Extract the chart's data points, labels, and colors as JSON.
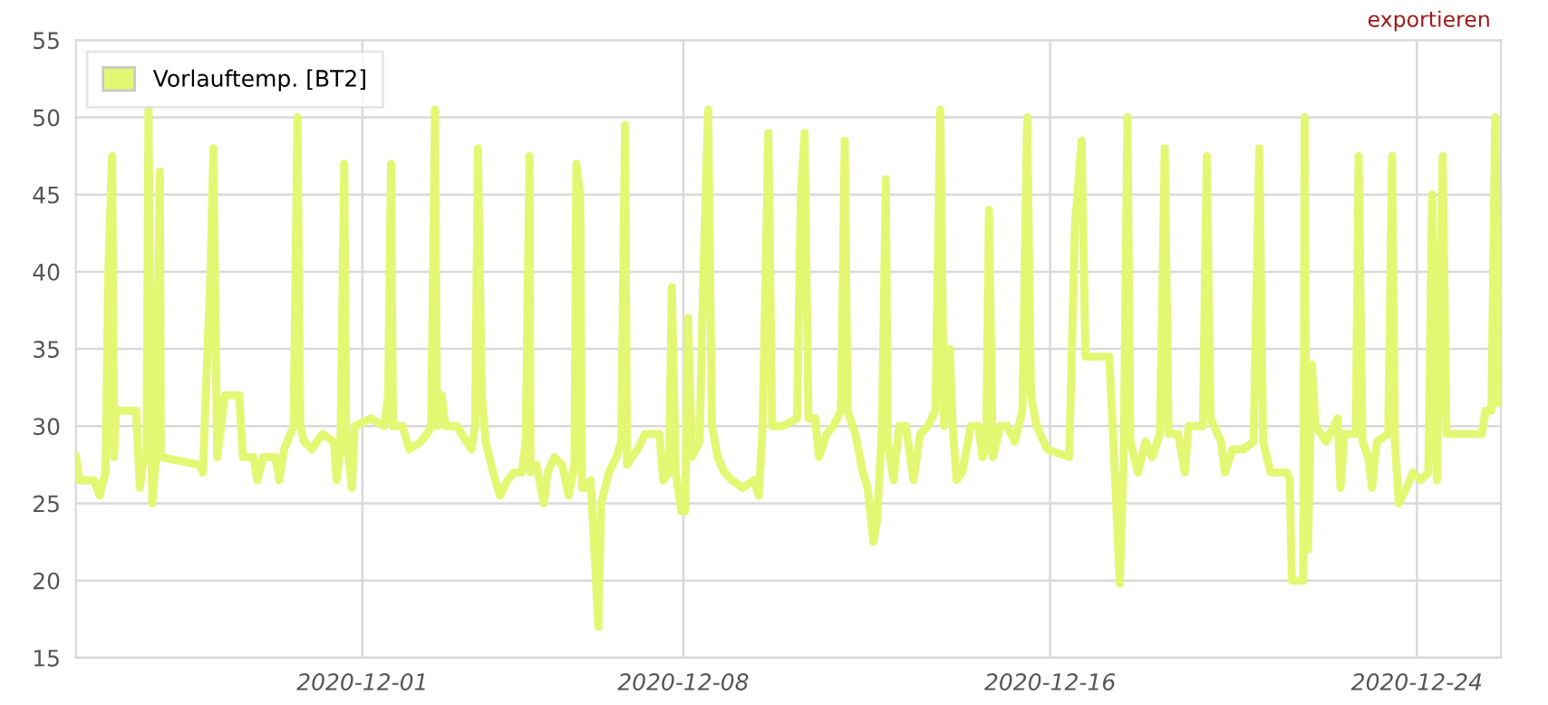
{
  "chart_data": {
    "type": "line",
    "legend": "top left",
    "grid": true,
    "xlim": [
      "2020-11-24T18:00",
      "2020-12-25T20:00"
    ],
    "xticks": [
      "2020-12-01",
      "2020-12-08",
      "2020-12-16",
      "2020-12-24"
    ],
    "ylim": [
      15,
      55
    ],
    "yticks": [
      15,
      20,
      25,
      30,
      35,
      40,
      45,
      50,
      55
    ],
    "annotations": [
      "exportieren"
    ],
    "series": [
      {
        "name": "Vorlauftemp. [BT2]",
        "color": "#e4f773",
        "x": [
          "2020-11-24T18:00",
          "2020-11-24T20:00",
          "2020-11-25T03:30",
          "2020-11-25T06:30",
          "2020-11-25T09:30",
          "2020-11-25T11:00",
          "2020-11-25T13:00",
          "2020-11-25T14:00",
          "2020-11-25T15:00",
          "2020-11-26T01:30",
          "2020-11-26T03:30",
          "2020-11-26T05:00",
          "2020-11-26T07:00",
          "2020-11-26T08:00",
          "2020-11-26T10:00",
          "2020-11-26T12:00",
          "2020-11-26T14:00",
          "2020-11-26T14:30",
          "2020-11-27T10:30",
          "2020-11-27T12:30",
          "2020-11-27T16:30",
          "2020-11-27T18:00",
          "2020-11-27T20:00",
          "2020-11-28T00:00",
          "2020-11-28T07:30",
          "2020-11-28T09:30",
          "2020-11-28T15:00",
          "2020-11-28T17:00",
          "2020-11-28T20:00",
          "2020-11-29T02:30",
          "2020-11-29T04:30",
          "2020-11-29T07:00",
          "2020-11-29T12:00",
          "2020-11-29T14:00",
          "2020-11-29T15:30",
          "2020-11-29T17:30",
          "2020-11-29T21:30",
          "2020-11-30T03:00",
          "2020-11-30T09:00",
          "2020-11-30T10:30",
          "2020-11-30T12:30",
          "2020-11-30T14:30",
          "2020-11-30T15:30",
          "2020-11-30T18:30",
          "2020-11-30T20:00",
          "2020-12-01T04:30",
          "2020-12-01T11:30",
          "2020-12-01T13:30",
          "2020-12-01T15:00",
          "2020-12-01T16:00",
          "2020-12-01T21:00",
          "2020-12-02T00:30",
          "2020-12-02T06:30",
          "2020-12-02T10:00",
          "2020-12-02T12:00",
          "2020-12-02T14:00",
          "2020-12-02T15:00",
          "2020-12-02T17:30",
          "2020-12-02T19:30",
          "2020-12-03T01:30",
          "2020-12-03T09:00",
          "2020-12-03T11:00",
          "2020-12-03T12:30",
          "2020-12-03T14:30",
          "2020-12-03T16:30",
          "2020-12-03T20:30",
          "2020-12-04T00:00",
          "2020-12-04T04:00",
          "2020-12-04T07:30",
          "2020-12-04T11:30",
          "2020-12-04T13:30",
          "2020-12-04T15:30",
          "2020-12-04T16:00",
          "2020-12-04T19:00",
          "2020-12-04T23:00",
          "2020-12-05T01:00",
          "2020-12-05T04:30",
          "2020-12-05T08:30",
          "2020-12-05T12:00",
          "2020-12-05T15:00",
          "2020-12-05T16:00",
          "2020-12-05T18:00",
          "2020-12-05T19:00",
          "2020-12-05T21:30",
          "2020-12-05T23:30",
          "2020-12-06T03:30",
          "2020-12-06T05:00",
          "2020-12-06T09:00",
          "2020-12-06T13:00",
          "2020-12-06T15:30",
          "2020-12-06T17:30",
          "2020-12-06T18:30",
          "2020-12-07T00:00",
          "2020-12-07T04:00",
          "2020-12-07T11:30",
          "2020-12-07T13:30",
          "2020-12-07T16:30",
          "2020-12-07T18:00",
          "2020-12-07T20:00",
          "2020-12-07T23:00",
          "2020-12-08T01:00",
          "2020-12-08T02:30",
          "2020-12-08T04:30",
          "2020-12-08T08:30",
          "2020-12-08T10:30",
          "2020-12-08T13:00",
          "2020-12-08T15:00",
          "2020-12-08T18:00",
          "2020-12-08T21:30",
          "2020-12-09T01:30",
          "2020-12-09T07:00",
          "2020-12-09T13:00",
          "2020-12-09T15:30",
          "2020-12-09T17:30",
          "2020-12-09T20:30",
          "2020-12-09T22:30",
          "2020-12-10T04:00",
          "2020-12-10T11:30",
          "2020-12-10T13:30",
          "2020-12-10T15:30",
          "2020-12-10T17:30",
          "2020-12-10T21:00",
          "2020-12-10T23:00",
          "2020-12-11T03:00",
          "2020-12-11T06:30",
          "2020-12-11T10:30",
          "2020-12-11T12:30",
          "2020-12-11T14:00",
          "2020-12-11T18:00",
          "2020-12-11T22:00",
          "2020-12-12T00:30",
          "2020-12-12T03:30",
          "2020-12-12T05:30",
          "2020-12-12T08:00",
          "2020-12-12T10:00",
          "2020-12-12T11:00",
          "2020-12-12T14:00",
          "2020-12-12T17:00",
          "2020-12-12T20:30",
          "2020-12-13T00:30",
          "2020-12-13T04:00",
          "2020-12-13T08:00",
          "2020-12-13T12:00",
          "2020-12-13T14:30",
          "2020-12-13T16:30",
          "2020-12-13T19:30",
          "2020-12-13T21:00",
          "2020-12-13T23:00",
          "2020-12-14T02:00",
          "2020-12-14T06:30",
          "2020-12-14T10:30",
          "2020-12-14T12:30",
          "2020-12-14T14:30",
          "2020-12-14T16:00",
          "2020-12-14T18:00",
          "2020-12-14T22:00",
          "2020-12-15T01:30",
          "2020-12-15T05:30",
          "2020-12-15T09:30",
          "2020-12-15T12:00",
          "2020-12-15T14:00",
          "2020-12-15T17:00",
          "2020-12-15T22:30",
          "2020-12-16T10:00",
          "2020-12-16T13:00",
          "2020-12-16T16:30",
          "2020-12-16T18:30",
          "2020-12-17T07:00",
          "2020-12-17T09:30",
          "2020-12-17T12:30",
          "2020-12-17T14:30",
          "2020-12-17T16:30",
          "2020-12-17T18:00",
          "2020-12-17T22:00",
          "2020-12-18T02:00",
          "2020-12-18T05:30",
          "2020-12-18T09:30",
          "2020-12-18T12:00",
          "2020-12-18T14:00",
          "2020-12-18T19:00",
          "2020-12-18T22:30",
          "2020-12-19T00:30",
          "2020-12-19T08:00",
          "2020-12-19T10:00",
          "2020-12-19T12:00",
          "2020-12-19T17:30",
          "2020-12-19T19:30",
          "2020-12-19T23:30",
          "2020-12-20T05:00",
          "2020-12-20T10:30",
          "2020-12-20T13:30",
          "2020-12-20T15:30",
          "2020-12-20T19:30",
          "2020-12-21T04:00",
          "2020-12-21T05:30",
          "2020-12-21T06:30",
          "2020-12-21T12:30",
          "2020-12-21T13:15",
          "2020-12-21T14:00",
          "2020-12-21T15:00",
          "2020-12-21T17:00",
          "2020-12-21T19:00",
          "2020-12-22T00:30",
          "2020-12-22T06:30",
          "2020-12-22T08:00",
          "2020-12-22T10:00",
          "2020-12-22T16:00",
          "2020-12-22T17:30",
          "2020-12-22T19:30",
          "2020-12-22T22:30",
          "2020-12-23T00:30",
          "2020-12-23T03:00",
          "2020-12-23T09:00",
          "2020-12-23T11:00",
          "2020-12-23T12:30",
          "2020-12-23T14:30",
          "2020-12-23T18:30",
          "2020-12-23T22:00",
          "2020-12-24T02:00",
          "2020-12-24T06:00",
          "2020-12-24T08:00",
          "2020-12-24T10:30",
          "2020-12-24T13:30",
          "2020-12-24T15:30",
          "2020-12-25T10:00",
          "2020-12-25T12:00",
          "2020-12-25T15:00",
          "2020-12-25T17:00",
          "2020-12-25T19:00",
          "2020-12-25T20:00"
        ],
        "values": [
          28,
          26.5,
          26.5,
          25.5,
          27,
          40,
          47.5,
          28,
          31,
          31,
          26,
          27.5,
          28,
          50.5,
          25,
          28,
          46.5,
          28,
          27.5,
          27,
          40,
          48,
          28,
          32,
          32,
          28,
          28,
          26.5,
          28,
          28,
          26.5,
          28.5,
          30,
          50,
          30,
          29,
          28.5,
          29.5,
          29,
          26.5,
          28.5,
          47,
          29.5,
          26,
          30,
          30.5,
          30,
          32,
          47,
          30,
          30,
          28.5,
          29,
          29.5,
          30,
          50.5,
          30,
          32,
          30,
          30,
          28.5,
          30,
          48,
          32,
          29,
          27,
          25.5,
          26.5,
          27,
          27,
          29,
          47.5,
          27,
          27.5,
          25,
          27,
          28,
          27.5,
          25.5,
          27.5,
          47,
          45,
          26,
          26,
          26.5,
          17,
          25,
          27,
          28,
          29,
          49.5,
          27.5,
          28.5,
          29.5,
          29.5,
          26.5,
          27,
          39,
          27,
          24.5,
          24.5,
          37,
          28,
          29,
          40,
          50.5,
          30,
          28,
          27,
          26.5,
          26,
          26.5,
          25.5,
          30,
          49,
          30,
          30,
          30.5,
          45,
          49,
          30.5,
          30.5,
          28,
          29.5,
          30,
          31,
          48.5,
          31,
          29.5,
          27,
          26,
          22.5,
          24,
          30,
          46,
          29,
          26.5,
          30,
          30,
          26.5,
          29.5,
          30,
          31,
          50.5,
          30,
          35,
          30,
          26.5,
          27,
          30,
          30,
          28,
          28.5,
          44,
          28,
          30,
          30,
          29,
          31,
          50,
          32,
          30,
          28.5,
          28,
          43,
          48.5,
          34.5,
          34.5,
          28,
          19.8,
          28,
          50,
          29,
          27,
          29,
          28,
          29.5,
          48,
          29.5,
          29.5,
          27,
          30,
          30,
          47.5,
          30.5,
          29,
          27,
          28.5,
          28.5,
          29,
          48,
          29,
          27,
          27,
          26.5,
          20,
          20,
          50,
          27,
          22,
          34,
          30,
          29,
          30.5,
          26,
          29.5,
          29.5,
          47.5,
          29,
          28,
          26,
          29,
          29.5,
          47.5,
          29,
          25,
          26,
          27,
          26.5,
          27,
          45,
          26.5,
          47.5,
          29.5,
          29.5,
          31,
          31,
          50,
          31.5,
          31.5
        ]
      }
    ]
  }
}
